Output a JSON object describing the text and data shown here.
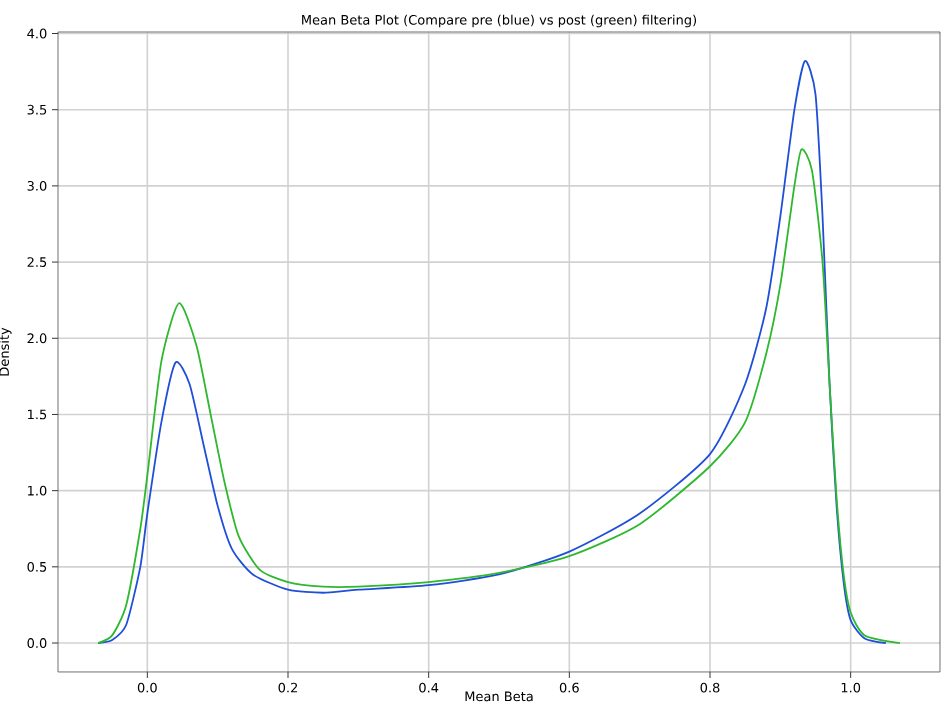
{
  "chart_data": {
    "type": "line",
    "title": "Mean Beta Plot (Compare pre (blue) vs post (green) filtering)",
    "xlabel": "Mean Beta",
    "ylabel": "Density",
    "xlim": [
      -0.127,
      1.127
    ],
    "ylim": [
      -0.19,
      4.01
    ],
    "xticks": [
      {
        "value": 0,
        "label": "0.0"
      },
      0.2,
      0.4,
      0.6,
      0.8,
      {
        "value": 1,
        "label": "1.0"
      }
    ],
    "yticks": [
      {
        "value": 0,
        "label": "0.0"
      },
      0.5,
      {
        "value": 1,
        "label": "1.0"
      },
      1.5,
      {
        "value": 2,
        "label": "2.0"
      },
      2.5,
      {
        "value": 3,
        "label": "3.0"
      },
      3.5,
      {
        "value": 4,
        "label": "4.0"
      }
    ],
    "grid": true,
    "marker": "none",
    "line_style": "solid",
    "series": [
      {
        "color": "#1f4fd8",
        "x": [
          -0.07,
          -0.05,
          -0.03,
          -0.01,
          0.0,
          0.02,
          0.04,
          0.06,
          0.08,
          0.1,
          0.12,
          0.15,
          0.2,
          0.25,
          0.3,
          0.4,
          0.5,
          0.6,
          0.7,
          0.8,
          0.85,
          0.88,
          0.9,
          0.92,
          0.935,
          0.95,
          0.96,
          0.97,
          0.98,
          0.99,
          1.0,
          1.02,
          1.05
        ],
        "values": [
          0.0,
          0.02,
          0.12,
          0.5,
          0.85,
          1.45,
          1.84,
          1.7,
          1.3,
          0.9,
          0.62,
          0.45,
          0.35,
          0.33,
          0.35,
          0.38,
          0.45,
          0.6,
          0.85,
          1.24,
          1.7,
          2.2,
          2.8,
          3.5,
          3.82,
          3.6,
          2.8,
          1.7,
          0.9,
          0.4,
          0.15,
          0.03,
          0.0
        ]
      },
      {
        "color": "#2eb82e",
        "x": [
          -0.07,
          -0.05,
          -0.03,
          -0.01,
          0.0,
          0.02,
          0.045,
          0.07,
          0.09,
          0.11,
          0.13,
          0.16,
          0.2,
          0.25,
          0.3,
          0.4,
          0.5,
          0.6,
          0.7,
          0.8,
          0.85,
          0.88,
          0.9,
          0.92,
          0.93,
          0.945,
          0.96,
          0.97,
          0.98,
          0.99,
          1.0,
          1.02,
          1.07
        ],
        "values": [
          0.0,
          0.05,
          0.25,
          0.75,
          1.1,
          1.85,
          2.23,
          1.95,
          1.5,
          1.05,
          0.7,
          0.48,
          0.4,
          0.37,
          0.37,
          0.4,
          0.46,
          0.57,
          0.78,
          1.16,
          1.45,
          1.9,
          2.35,
          3.0,
          3.24,
          3.1,
          2.5,
          1.7,
          0.95,
          0.45,
          0.2,
          0.05,
          0.0
        ]
      }
    ]
  }
}
